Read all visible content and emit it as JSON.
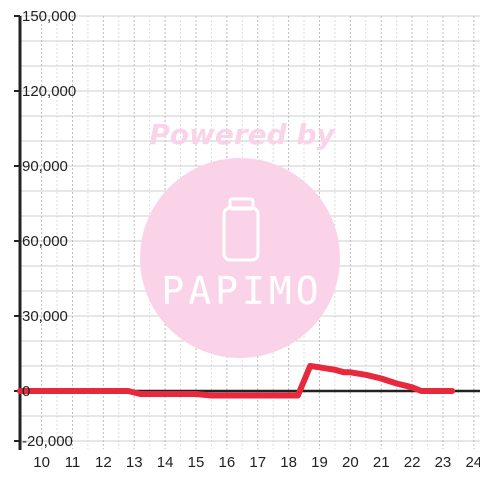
{
  "chart_data": {
    "type": "line",
    "title": "",
    "xlabel": "",
    "ylabel": "",
    "xlim": [
      9.3,
      24.2
    ],
    "ylim": [
      -20000,
      150000
    ],
    "x_ticks": [
      "10",
      "11",
      "12",
      "13",
      "14",
      "15",
      "16",
      "17",
      "18",
      "19",
      "20",
      "21",
      "22",
      "23",
      "24"
    ],
    "y_ticks": [
      "150,000",
      "120,000",
      "90,000",
      "60,000",
      "30,000",
      "0",
      "-20,000"
    ],
    "y_tick_values": [
      150000,
      120000,
      90000,
      60000,
      30000,
      0,
      -20000
    ],
    "grid": true,
    "line_color": "#e8283c",
    "series": [
      {
        "x": [
          9.3,
          10,
          11,
          12,
          12.8,
          13.2,
          14,
          15,
          15.5,
          16,
          17,
          18,
          18.3,
          18.7,
          19,
          19.5,
          19.8,
          20,
          20.5,
          21,
          21.5,
          22,
          22.3,
          22.5,
          23,
          23.3
        ],
        "values": [
          0,
          0,
          0,
          0,
          0,
          -1200,
          -1200,
          -1200,
          -1800,
          -1800,
          -1800,
          -1800,
          -1800,
          10000,
          9500,
          8500,
          7500,
          7500,
          6500,
          5000,
          3000,
          1500,
          0,
          0,
          0,
          0
        ]
      }
    ]
  },
  "watermark": {
    "title": "Powered by",
    "logo": "PAPIMO"
  }
}
